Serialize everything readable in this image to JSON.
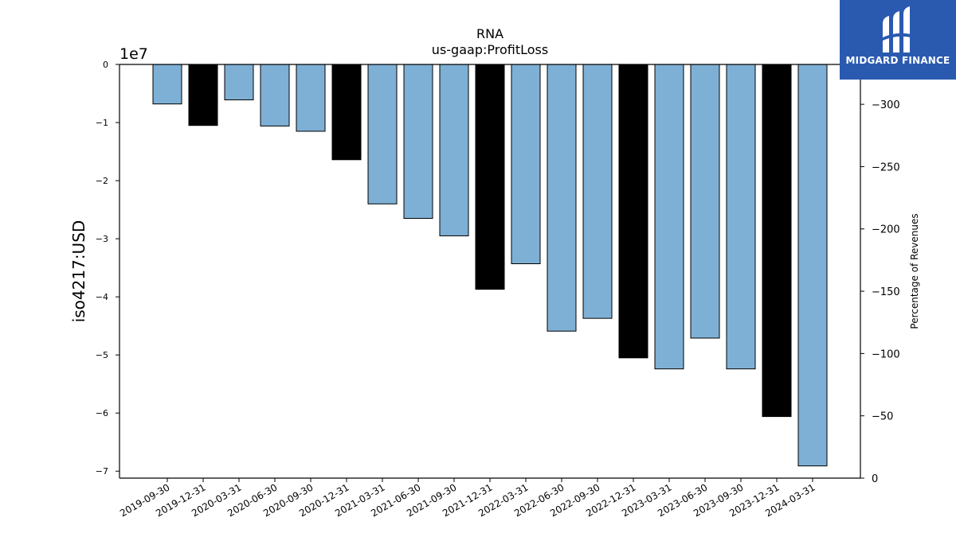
{
  "chart_data": {
    "type": "bar",
    "title": "RNA",
    "subtitle": "us-gaap:ProfitLoss",
    "ylabel": "iso4217:USD",
    "y2label": "Percentage of Revenues",
    "offset_label": "1e7",
    "categories": [
      "2019-09-30",
      "2019-12-31",
      "2020-03-31",
      "2020-06-30",
      "2020-09-30",
      "2020-12-31",
      "2021-03-31",
      "2021-06-30",
      "2021-09-30",
      "2021-12-31",
      "2022-03-31",
      "2022-06-30",
      "2022-09-30",
      "2022-12-31",
      "2023-03-31",
      "2023-06-30",
      "2023-09-30",
      "2023-12-31",
      "2024-03-31"
    ],
    "values": [
      -6800000,
      -10500000,
      -6100000,
      -10600000,
      -11500000,
      -16400000,
      -24000000,
      -26500000,
      -29500000,
      -38700000,
      -34300000,
      -45900000,
      -43700000,
      -50500000,
      -52400000,
      -47100000,
      -52400000,
      -60600000,
      -69100000
    ],
    "bar_kind": [
      "quarter",
      "annual",
      "quarter",
      "quarter",
      "quarter",
      "annual",
      "quarter",
      "quarter",
      "quarter",
      "annual",
      "quarter",
      "quarter",
      "quarter",
      "annual",
      "quarter",
      "quarter",
      "quarter",
      "annual",
      "quarter"
    ],
    "colors": {
      "quarter": "#7eb0d5",
      "annual": "#000000"
    },
    "ylim": [
      -71200000,
      0
    ],
    "yticks": [
      0,
      -10000000,
      -20000000,
      -30000000,
      -40000000,
      -50000000,
      -60000000,
      -70000000
    ],
    "ytick_labels": [
      "0",
      "−1",
      "−2",
      "−3",
      "−4",
      "−5",
      "−6",
      "−7"
    ],
    "y2lim": [
      0,
      -332
    ],
    "y2ticks": [
      -300,
      -250,
      -200,
      -150,
      -100,
      -50,
      0
    ],
    "y2tick_labels": [
      "−300",
      "−250",
      "−200",
      "−150",
      "−100",
      "−50",
      "0"
    ]
  },
  "logo": {
    "text": "MIDGARD FINANCE",
    "icon": "midgard-logo-icon"
  }
}
